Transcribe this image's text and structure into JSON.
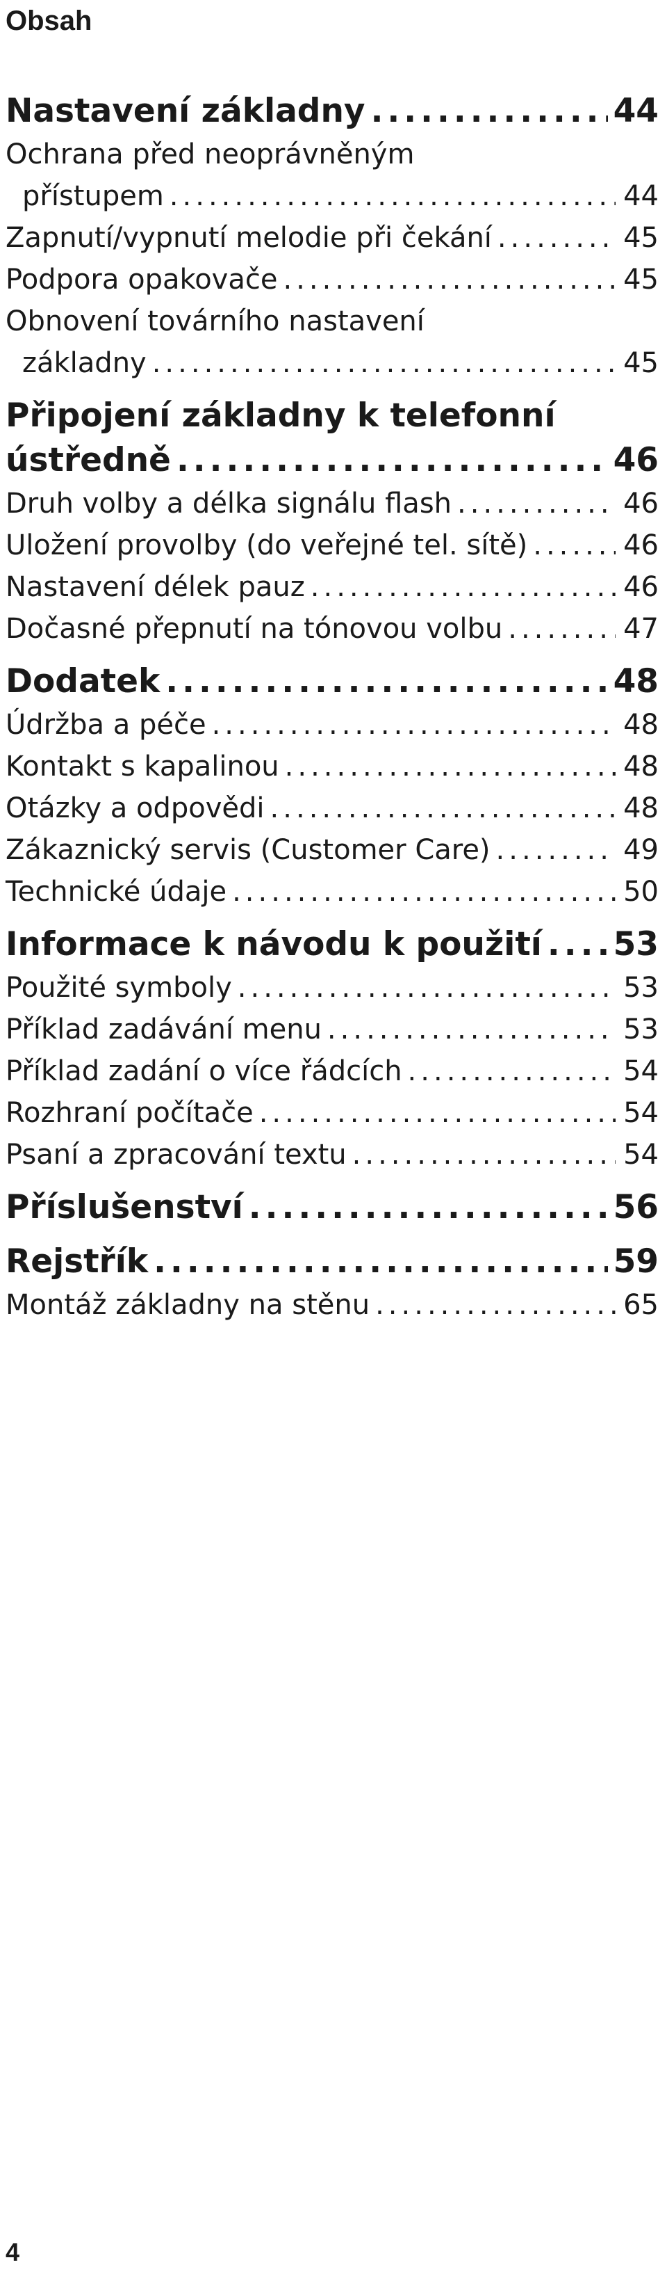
{
  "page": {
    "title": "Obsah",
    "page_number": "4"
  },
  "toc": [
    {
      "type": "section",
      "text": "Nastavení základny",
      "page": "44"
    },
    {
      "type": "sub-multi",
      "line1": "Ochrana před neoprávněným",
      "line2": "přístupem",
      "page": "44"
    },
    {
      "type": "sub",
      "text": "Zapnutí/vypnutí melodie při čekání",
      "page": "45"
    },
    {
      "type": "sub",
      "text": "Podpora opakovače",
      "page": "45"
    },
    {
      "type": "sub-multi",
      "line1": "Obnovení továrního nastavení",
      "line2": "základny",
      "page": "45"
    },
    {
      "type": "section-multi",
      "line1": "Připojení základny k telefonní",
      "line2": "ústředně",
      "page": "46"
    },
    {
      "type": "sub",
      "text": "Druh volby a délka signálu flash",
      "page": "46"
    },
    {
      "type": "sub",
      "text": "Uložení provolby (do veřejné tel. sítě)",
      "page": "46"
    },
    {
      "type": "sub",
      "text": "Nastavení délek pauz",
      "page": "46"
    },
    {
      "type": "sub",
      "text": "Dočasné přepnutí na tónovou volbu",
      "page": "47"
    },
    {
      "type": "section",
      "text": "Dodatek",
      "page": "48"
    },
    {
      "type": "sub",
      "text": "Údržba a péče",
      "page": "48"
    },
    {
      "type": "sub",
      "text": "Kontakt s kapalinou",
      "page": "48"
    },
    {
      "type": "sub",
      "text": "Otázky a odpovědi",
      "page": "48"
    },
    {
      "type": "sub",
      "text": "Zákaznický servis (Customer Care)",
      "page": "49"
    },
    {
      "type": "sub",
      "text": "Technické údaje",
      "page": "50"
    },
    {
      "type": "section",
      "text": "Informace k návodu k použití",
      "page": "53"
    },
    {
      "type": "sub",
      "text": "Použité symboly",
      "page": "53"
    },
    {
      "type": "sub",
      "text": "Příklad zadávání menu",
      "page": "53"
    },
    {
      "type": "sub",
      "text": "Příklad zadání o více řádcích",
      "page": "54"
    },
    {
      "type": "sub",
      "text": "Rozhraní počítače",
      "page": "54"
    },
    {
      "type": "sub",
      "text": "Psaní a zpracování textu",
      "page": "54"
    },
    {
      "type": "section",
      "text": "Příslušenství",
      "page": "56"
    },
    {
      "type": "section",
      "text": "Rejstřík",
      "page": "59"
    },
    {
      "type": "sub",
      "text": "Montáž základny na stěnu",
      "page": "65"
    }
  ]
}
